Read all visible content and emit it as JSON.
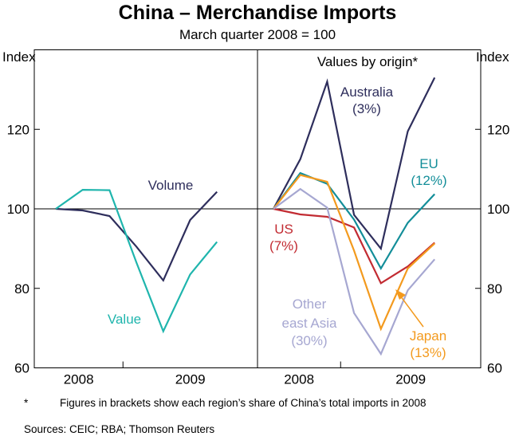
{
  "title": "China – Merchandise Imports",
  "subtitle": "March quarter 2008 = 100",
  "chart_data": [
    {
      "type": "line",
      "panel": "left",
      "ylabel_left": "Index",
      "ylim": [
        60,
        140
      ],
      "yticks": [
        60,
        80,
        100,
        120
      ],
      "xticks": [
        "2008",
        "2009"
      ],
      "x": [
        "Mar-2008",
        "Jun-2008",
        "Sep-2008",
        "Dec-2008",
        "Mar-2009",
        "Jun-2009",
        "Sep-2009"
      ],
      "series": [
        {
          "name": "Volume",
          "color": "#2e2e5c",
          "values": [
            100,
            99.6,
            98.2,
            90.5,
            82,
            97.2,
            104.3
          ]
        },
        {
          "name": "Value",
          "color": "#1fb5ad",
          "values": [
            100,
            104.8,
            104.7,
            86.5,
            69.2,
            83.5,
            91.7
          ]
        }
      ]
    },
    {
      "type": "line",
      "panel": "right",
      "panel_title": "Values by origin*",
      "ylabel_right": "Index",
      "ylim": [
        60,
        140
      ],
      "yticks": [
        60,
        80,
        100,
        120
      ],
      "xticks": [
        "2008",
        "2009"
      ],
      "x": [
        "Mar-2008",
        "Jun-2008",
        "Sep-2008",
        "Dec-2008",
        "Mar-2009",
        "Jun-2009",
        "Sep-2009"
      ],
      "series": [
        {
          "name": "Australia",
          "share": "(3%)",
          "color": "#2e2e5c",
          "values": [
            100,
            112.5,
            132,
            98.5,
            90,
            119.5,
            133
          ]
        },
        {
          "name": "EU",
          "share": "(12%)",
          "color": "#138e99",
          "values": [
            100,
            109,
            106.3,
            97.3,
            85,
            96.5,
            103.7
          ]
        },
        {
          "name": "US",
          "share": "(7%)",
          "color": "#c22b32",
          "values": [
            100,
            98.6,
            98,
            95.3,
            81.3,
            85.5,
            91.5
          ]
        },
        {
          "name": "Japan",
          "share": "(13%)",
          "color": "#f39a1e",
          "values": [
            100,
            108.5,
            106.8,
            89.5,
            69.8,
            85,
            91.3
          ]
        },
        {
          "name": "Other east Asia",
          "share": "(30%)",
          "color": "#a6a7d1",
          "values": [
            100,
            105,
            100.3,
            73.8,
            63.5,
            79.5,
            87.3
          ]
        }
      ]
    }
  ],
  "labels": {
    "volume": "Volume",
    "value": "Value",
    "australia": "Australia",
    "australia_share": "(3%)",
    "eu": "EU",
    "eu_share": "(12%)",
    "us": "US",
    "us_share": "(7%)",
    "other_line1": "Other",
    "other_line2": "east Asia",
    "other_share": "(30%)",
    "japan": "Japan",
    "japan_share": "(13%)"
  },
  "footnote_marker": "*",
  "footnote": "Figures in brackets show each region’s share of China’s total imports in 2008",
  "sources": "Sources: CEIC; RBA; Thomson Reuters"
}
